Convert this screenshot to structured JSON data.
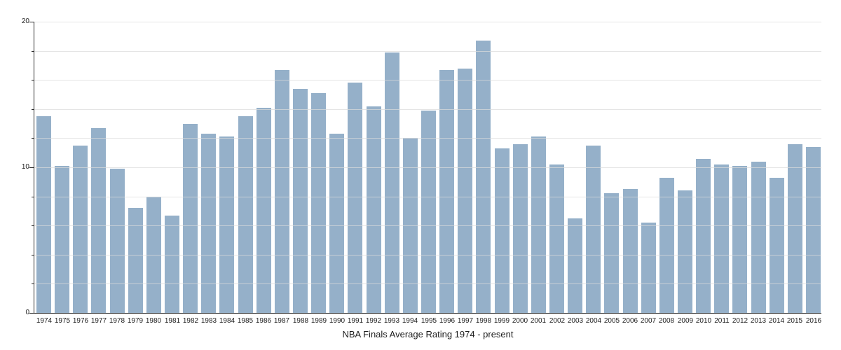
{
  "chart_data": {
    "type": "bar",
    "title": "NBA Finals Average Rating 1974 - present",
    "categories": [
      "1974",
      "1975",
      "1976",
      "1977",
      "1978",
      "1979",
      "1980",
      "1981",
      "1982",
      "1983",
      "1984",
      "1985",
      "1986",
      "1987",
      "1988",
      "1989",
      "1990",
      "1991",
      "1992",
      "1993",
      "1994",
      "1995",
      "1996",
      "1997",
      "1998",
      "1999",
      "2000",
      "2001",
      "2002",
      "2003",
      "2004",
      "2005",
      "2006",
      "2007",
      "2008",
      "2009",
      "2010",
      "2011",
      "2012",
      "2013",
      "2014",
      "2015",
      "2016"
    ],
    "values": [
      13.5,
      10.1,
      11.5,
      12.7,
      9.9,
      7.2,
      8.0,
      6.7,
      13.0,
      12.3,
      12.1,
      13.5,
      14.1,
      16.7,
      15.4,
      15.1,
      12.3,
      15.8,
      14.2,
      17.9,
      12.0,
      13.9,
      16.7,
      16.8,
      18.7,
      11.3,
      11.6,
      12.1,
      10.2,
      6.5,
      11.5,
      8.2,
      8.5,
      6.2,
      9.3,
      8.4,
      10.6,
      10.2,
      10.1,
      10.4,
      9.3,
      11.6,
      11.4
    ],
    "xlabel": "",
    "ylabel": "",
    "ylim": [
      0,
      20
    ],
    "y_major_ticks": [
      0,
      10,
      20
    ],
    "y_minor_step": 2,
    "grid": "on",
    "legend": "none",
    "colors": {
      "bar": "#95b0c9",
      "gridline_over_bars": "rgba(219,219,219,0.72)",
      "axis": "#2a2a2a",
      "text": "#1c1c1c"
    }
  }
}
